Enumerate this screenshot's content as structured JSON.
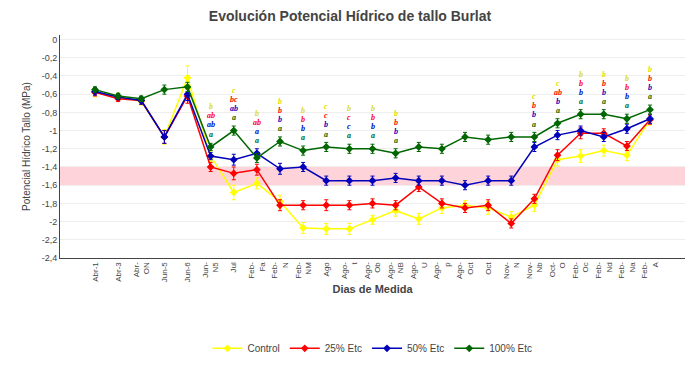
{
  "chart_data": {
    "type": "line",
    "title": "Evolución Potencial Hídrico de tallo Burlat",
    "xlabel": "Dias de Medida",
    "ylabel": "Potencial Hídrico Tallo (MPa)",
    "categories": [
      "Abr-1",
      "Abr-3",
      "Abr-\nON",
      "Jun-5",
      "Jun-6",
      "Jun-\nN5",
      "Jul",
      "Feb-\nFa",
      "Feb-\nN",
      "Feb-\nNM",
      "Ago",
      "Ago-\nt",
      "Ago-\nOb",
      "Ago-\nNB",
      "Ago-\nU",
      "Ago-\np",
      "Ago-\nOct",
      "Oct",
      "Nov-\nN",
      "Nov-\nNb",
      "Oct-\nO",
      "Feb-\nOc",
      "Feb-\nNd",
      "Feb-\nNa",
      "Feb-\nA"
    ],
    "series": [
      {
        "name": "Control",
        "color": "#FFFF00",
        "marker": "diamond",
        "values": [
          -0.58,
          -0.63,
          -0.68,
          -1.07,
          -0.42,
          -1.28,
          -1.68,
          -1.58,
          -1.78,
          -2.07,
          -2.08,
          -2.08,
          -1.98,
          -1.88,
          -1.97,
          -1.85,
          -1.82,
          -1.85,
          -1.95,
          -1.82,
          -1.32,
          -1.28,
          -1.22,
          -1.27,
          -0.88
        ],
        "errors": [
          0.05,
          0.04,
          0.04,
          0.08,
          0.13,
          0.06,
          0.08,
          0.06,
          0.07,
          0.06,
          0.06,
          0.06,
          0.05,
          0.06,
          0.06,
          0.06,
          0.05,
          0.07,
          0.06,
          0.07,
          0.07,
          0.07,
          0.06,
          0.06,
          0.06
        ]
      },
      {
        "name": "25% Etc",
        "color": "#FF0000",
        "marker": "diamond",
        "values": [
          -0.58,
          -0.65,
          -0.67,
          -1.07,
          -0.62,
          -1.4,
          -1.47,
          -1.43,
          -1.82,
          -1.82,
          -1.82,
          -1.82,
          -1.8,
          -1.82,
          -1.62,
          -1.8,
          -1.85,
          -1.82,
          -2.02,
          -1.75,
          -1.27,
          -1.03,
          -1.03,
          -1.17,
          -0.88
        ],
        "errors": [
          0.04,
          0.03,
          0.04,
          0.07,
          0.08,
          0.05,
          0.07,
          0.06,
          0.06,
          0.05,
          0.06,
          0.05,
          0.05,
          0.05,
          0.05,
          0.05,
          0.05,
          0.06,
          0.05,
          0.05,
          0.06,
          0.06,
          0.05,
          0.05,
          0.05
        ]
      },
      {
        "name": "50% Etc",
        "color": "#0000BB",
        "marker": "diamond",
        "values": [
          -0.57,
          -0.63,
          -0.67,
          -1.07,
          -0.6,
          -1.28,
          -1.32,
          -1.25,
          -1.42,
          -1.4,
          -1.55,
          -1.55,
          -1.55,
          -1.52,
          -1.55,
          -1.55,
          -1.6,
          -1.55,
          -1.55,
          -1.18,
          -1.05,
          -1.0,
          -1.07,
          -0.98,
          -0.87
        ],
        "errors": [
          0.04,
          0.03,
          0.04,
          0.07,
          0.07,
          0.04,
          0.06,
          0.05,
          0.06,
          0.05,
          0.05,
          0.05,
          0.05,
          0.05,
          0.05,
          0.05,
          0.05,
          0.05,
          0.05,
          0.05,
          0.05,
          0.05,
          0.05,
          0.05,
          0.05
        ]
      },
      {
        "name": "100% Etc",
        "color": "#006600",
        "marker": "diamond",
        "values": [
          -0.55,
          -0.62,
          -0.65,
          -0.55,
          -0.52,
          -1.18,
          -1.0,
          -1.3,
          -1.12,
          -1.22,
          -1.18,
          -1.2,
          -1.2,
          -1.25,
          -1.18,
          -1.2,
          -1.07,
          -1.1,
          -1.07,
          -1.07,
          -0.92,
          -0.82,
          -0.82,
          -0.87,
          -0.77
        ],
        "errors": [
          0.03,
          0.03,
          0.03,
          0.05,
          0.05,
          0.04,
          0.05,
          0.05,
          0.05,
          0.05,
          0.05,
          0.05,
          0.05,
          0.05,
          0.05,
          0.05,
          0.05,
          0.05,
          0.05,
          0.05,
          0.05,
          0.05,
          0.05,
          0.05,
          0.05
        ]
      }
    ],
    "ylim": [
      -2.4,
      0.05
    ],
    "yticks": [
      0,
      {
        "value": -0.2,
        "label": "-0,2"
      },
      {
        "value": -0.4,
        "label": "-0,4"
      },
      {
        "value": -0.6,
        "label": "-0,6"
      },
      {
        "value": -0.8,
        "label": "-0,8"
      },
      -1,
      {
        "value": -1.2,
        "label": "-1,2"
      },
      {
        "value": -1.4,
        "label": "-1,4"
      },
      {
        "value": -1.6,
        "label": "-1,6"
      },
      {
        "value": -1.8,
        "label": "-1,8"
      },
      -2,
      {
        "value": -2.2,
        "label": "-2,2"
      },
      {
        "value": -2.4,
        "label": "-2,4"
      }
    ],
    "grid": true,
    "legend": "bottom",
    "shaded_band": {
      "range": [
        -1.4,
        -1.6
      ],
      "color": "#FFB6C1"
    },
    "annotations": [
      {
        "category": "Jun-\nN5",
        "labels": [
          {
            "text": "a",
            "color": "#006600"
          },
          {
            "text": "ab",
            "color": "#0000BB"
          },
          {
            "text": "ab",
            "color": "#FF0000"
          },
          {
            "text": "b",
            "color": "#DDDD00"
          }
        ]
      },
      {
        "category": "Jul",
        "labels": [
          {
            "text": "a",
            "color": "#006600"
          },
          {
            "text": "ab",
            "color": "#0000BB"
          },
          {
            "text": "bc",
            "color": "#FF0000"
          },
          {
            "text": "c",
            "color": "#DDDD00"
          }
        ]
      },
      {
        "category": "Feb-\nFa",
        "labels": [
          {
            "text": "a",
            "color": "#006600"
          },
          {
            "text": "a",
            "color": "#0000BB"
          },
          {
            "text": "ab",
            "color": "#FF0000"
          },
          {
            "text": "b",
            "color": "#DDDD00"
          }
        ]
      },
      {
        "category": "Feb-\nN",
        "labels": [
          {
            "text": "a",
            "color": "#006600"
          },
          {
            "text": "b",
            "color": "#0000BB"
          },
          {
            "text": "b",
            "color": "#FF0000"
          },
          {
            "text": "b",
            "color": "#DDDD00"
          }
        ]
      },
      {
        "category": "Feb-\nNM",
        "labels": [
          {
            "text": "a",
            "color": "#006600"
          },
          {
            "text": "b",
            "color": "#0000BB"
          },
          {
            "text": "b",
            "color": "#FF0000"
          },
          {
            "text": "b",
            "color": "#DDDD00"
          }
        ]
      },
      {
        "category": "Ago",
        "labels": [
          {
            "text": "a",
            "color": "#006600"
          },
          {
            "text": "b",
            "color": "#0000BB"
          },
          {
            "text": "c",
            "color": "#FF0000"
          },
          {
            "text": "c",
            "color": "#DDDD00"
          }
        ]
      },
      {
        "category": "Ago-\nt",
        "labels": [
          {
            "text": "a",
            "color": "#006600"
          },
          {
            "text": "c",
            "color": "#0000BB"
          },
          {
            "text": "c",
            "color": "#FF0000"
          },
          {
            "text": "b",
            "color": "#DDDD00"
          }
        ]
      },
      {
        "category": "Ago-\nOb",
        "labels": [
          {
            "text": "a",
            "color": "#006600"
          },
          {
            "text": "b",
            "color": "#0000BB"
          },
          {
            "text": "b",
            "color": "#FF0000"
          },
          {
            "text": "b",
            "color": "#DDDD00"
          }
        ]
      },
      {
        "category": "Ago-\nNB",
        "labels": [
          {
            "text": "a",
            "color": "#006600"
          },
          {
            "text": "b",
            "color": "#0000BB"
          },
          {
            "text": "b",
            "color": "#FF0000"
          },
          {
            "text": "b",
            "color": "#DDDD00"
          }
        ]
      },
      {
        "category": "Nov-\nNb",
        "labels": [
          {
            "text": "a",
            "color": "#006600"
          },
          {
            "text": "b",
            "color": "#0000BB"
          },
          {
            "text": "b",
            "color": "#FF0000"
          },
          {
            "text": "c",
            "color": "#DDDD00"
          }
        ]
      },
      {
        "category": "Oct-\nO",
        "labels": [
          {
            "text": "a",
            "color": "#006600"
          },
          {
            "text": "b",
            "color": "#0000BB"
          },
          {
            "text": "ab",
            "color": "#FF0000"
          },
          {
            "text": "c",
            "color": "#DDDD00"
          }
        ]
      },
      {
        "category": "Feb-\nOc",
        "labels": [
          {
            "text": "a",
            "color": "#006600"
          },
          {
            "text": "b",
            "color": "#0000BB"
          },
          {
            "text": "b",
            "color": "#FF0000"
          },
          {
            "text": "b",
            "color": "#DDDD00"
          }
        ]
      },
      {
        "category": "Feb-\nNd",
        "labels": [
          {
            "text": "a",
            "color": "#006600"
          },
          {
            "text": "b",
            "color": "#0000BB"
          },
          {
            "text": "b",
            "color": "#FF0000"
          },
          {
            "text": "b",
            "color": "#DDDD00"
          }
        ]
      },
      {
        "category": "Feb-\nNa",
        "labels": [
          {
            "text": "a",
            "color": "#006600"
          },
          {
            "text": "b",
            "color": "#0000BB"
          },
          {
            "text": "b",
            "color": "#FF0000"
          },
          {
            "text": "b",
            "color": "#DDDD00"
          }
        ]
      },
      {
        "category": "Feb-\nA",
        "labels": [
          {
            "text": "a",
            "color": "#006600"
          },
          {
            "text": "b",
            "color": "#0000BB"
          },
          {
            "text": "b",
            "color": "#FF0000"
          },
          {
            "text": "b",
            "color": "#DDDD00"
          }
        ]
      }
    ]
  }
}
